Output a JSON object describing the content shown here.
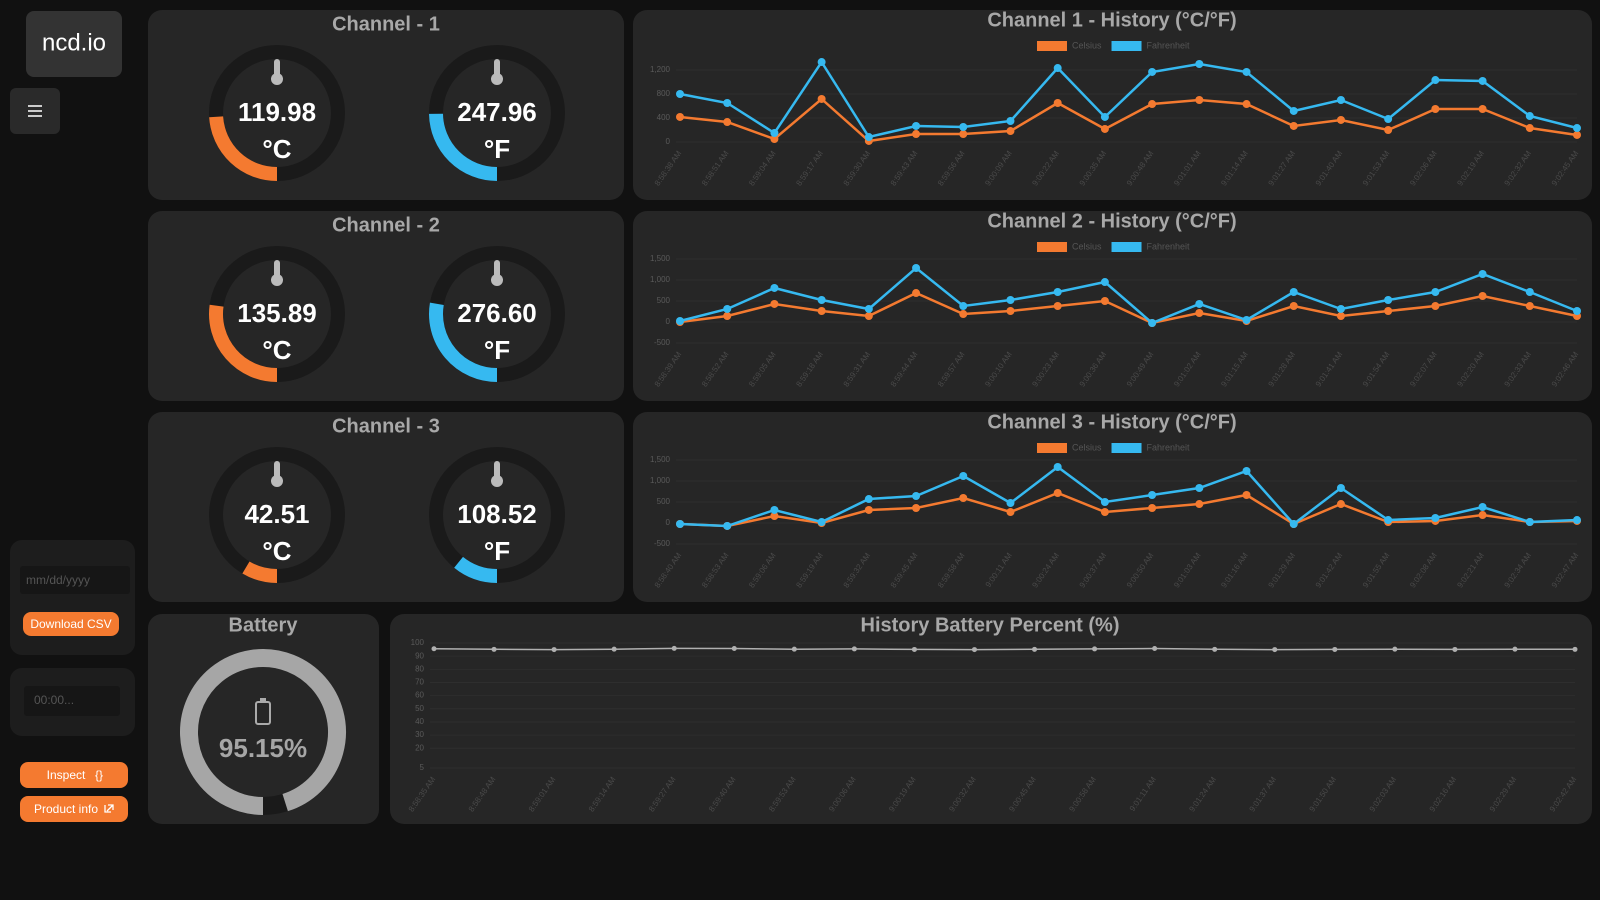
{
  "sidebar": {
    "logo": "ncd.io",
    "date_placeholder": "mm/dd/yyyy",
    "download_button": "Download CSV",
    "time_select": "00:00...",
    "inspect_button": "Inspect",
    "product_info_button": "Product info"
  },
  "channels": [
    {
      "title": "Channel - 1",
      "gauges": [
        {
          "value": 119.98,
          "value_label": "119.98",
          "unit": "°C",
          "max": 500,
          "color": "#f47a30"
        },
        {
          "value": 247.96,
          "value_label": "247.96",
          "unit": "°F",
          "max": 1000,
          "color": "#36b9f0"
        }
      ]
    },
    {
      "title": "Channel - 2",
      "gauges": [
        {
          "value": 135.89,
          "value_label": "135.89",
          "unit": "°C",
          "max": 500,
          "color": "#f47a30"
        },
        {
          "value": 276.6,
          "value_label": "276.60",
          "unit": "°F",
          "max": 1000,
          "color": "#36b9f0"
        }
      ]
    },
    {
      "title": "Channel - 3",
      "gauges": [
        {
          "value": 42.51,
          "value_label": "42.51",
          "unit": "°C",
          "max": 500,
          "color": "#f47a30"
        },
        {
          "value": 108.52,
          "value_label": "108.52",
          "unit": "°F",
          "max": 1000,
          "color": "#36b9f0"
        }
      ]
    }
  ],
  "battery": {
    "title": "Battery",
    "value": 95.15,
    "value_label": "95.15%",
    "max": 100,
    "color": "#a6a6a6"
  },
  "chart_data": [
    {
      "type": "line",
      "title": "Channel 1 - History (°C/°F)",
      "categories": [
        "8:58:38 AM",
        "8:58:51 AM",
        "8:59:04 AM",
        "8:59:17 AM",
        "8:59:30 AM",
        "8:59:43 AM",
        "8:59:56 AM",
        "9:00:09 AM",
        "9:00:22 AM",
        "9:00:35 AM",
        "9:00:48 AM",
        "9:01:01 AM",
        "9:01:14 AM",
        "9:01:27 AM",
        "9:01:40 AM",
        "9:01:53 AM",
        "9:02:06 AM",
        "9:02:19 AM",
        "9:02:32 AM",
        "9:02:45 AM"
      ],
      "series": [
        {
          "name": "Celsius",
          "color": "#f47a30",
          "values": [
            417,
            333,
            50,
            717,
            17,
            133,
            133,
            183,
            650,
            217,
            633,
            700,
            633,
            267,
            367,
            200,
            550,
            550,
            233,
            117
          ]
        },
        {
          "name": "Fahrenheit",
          "color": "#36b9f0",
          "values": [
            800,
            650,
            150,
            1333,
            83,
            267,
            250,
            350,
            1233,
            417,
            1167,
            1300,
            1167,
            517,
            700,
            383,
            1033,
            1017,
            433,
            233
          ]
        }
      ],
      "ylim": [
        0,
        1400
      ],
      "yticks": [
        0,
        400,
        800,
        {
          "value": 1200,
          "label": "1,200"
        }
      ],
      "legend": "top"
    },
    {
      "type": "line",
      "title": "Channel 2 - History (°C/°F)",
      "categories": [
        "8:58:39 AM",
        "8:58:52 AM",
        "8:59:05 AM",
        "8:59:18 AM",
        "8:59:31 AM",
        "8:59:44 AM",
        "8:59:57 AM",
        "9:00:10 AM",
        "9:00:23 AM",
        "9:00:36 AM",
        "9:00:49 AM",
        "9:01:02 AM",
        "9:01:15 AM",
        "9:01:28 AM",
        "9:01:41 AM",
        "9:01:54 AM",
        "9:02:07 AM",
        "9:02:20 AM",
        "9:02:33 AM",
        "9:02:46 AM"
      ],
      "series": [
        {
          "name": "Celsius",
          "color": "#f47a30",
          "values": [
            0,
            143,
            429,
            262,
            143,
            690,
            190,
            262,
            381,
            500,
            -24,
            214,
            24,
            381,
            143,
            262,
            381,
            619,
            381,
            143
          ]
        },
        {
          "name": "Fahrenheit",
          "color": "#36b9f0",
          "values": [
            24,
            310,
            810,
            524,
            310,
            1286,
            381,
            524,
            714,
            952,
            -24,
            429,
            48,
            714,
            310,
            524,
            714,
            1143,
            714,
            262
          ]
        }
      ],
      "ylim": [
        -500,
        1500
      ],
      "yticks": [
        -500,
        0,
        500,
        {
          "value": 1000,
          "label": "1,000"
        },
        {
          "value": 1500,
          "label": "1,500"
        }
      ],
      "legend": "top"
    },
    {
      "type": "line",
      "title": "Channel 3 - History (°C/°F)",
      "categories": [
        "8:58:40 AM",
        "8:58:53 AM",
        "8:59:06 AM",
        "8:59:19 AM",
        "8:59:32 AM",
        "8:59:45 AM",
        "8:59:58 AM",
        "9:00:11 AM",
        "9:00:24 AM",
        "9:00:37 AM",
        "9:00:50 AM",
        "9:01:03 AM",
        "9:01:16 AM",
        "9:01:29 AM",
        "9:01:42 AM",
        "9:01:55 AM",
        "9:02:08 AM",
        "9:02:21 AM",
        "9:02:34 AM",
        "9:02:47 AM"
      ],
      "series": [
        {
          "name": "Celsius",
          "color": "#f47a30",
          "values": [
            -24,
            -71,
            167,
            0,
            310,
            357,
            595,
            262,
            714,
            262,
            357,
            452,
            667,
            -24,
            452,
            24,
            48,
            190,
            24,
            48
          ]
        },
        {
          "name": "Fahrenheit",
          "color": "#36b9f0",
          "values": [
            -24,
            -71,
            310,
            24,
            571,
            643,
            1119,
            476,
            1333,
            500,
            667,
            833,
            1238,
            -24,
            833,
            71,
            119,
            381,
            24,
            71
          ]
        }
      ],
      "ylim": [
        -500,
        1500
      ],
      "yticks": [
        -500,
        0,
        500,
        {
          "value": 1000,
          "label": "1,000"
        },
        {
          "value": 1500,
          "label": "1,500"
        }
      ],
      "legend": "top"
    },
    {
      "type": "line",
      "title": "History Battery Percent (%)",
      "categories": [
        "8:58:35 AM",
        "8:58:48 AM",
        "8:59:01 AM",
        "8:59:14 AM",
        "8:59:27 AM",
        "8:59:40 AM",
        "8:59:53 AM",
        "9:00:06 AM",
        "9:00:19 AM",
        "9:00:32 AM",
        "9:00:45 AM",
        "9:00:58 AM",
        "9:01:11 AM",
        "9:01:24 AM",
        "9:01:37 AM",
        "9:01:50 AM",
        "9:02:03 AM",
        "9:02:16 AM",
        "9:02:29 AM",
        "9:02:42 AM"
      ],
      "values": [
        95.6,
        95.2,
        95.0,
        95.3,
        95.9,
        95.8,
        95.3,
        95.5,
        95.1,
        95.0,
        95.2,
        95.5,
        95.8,
        95.2,
        95.0,
        95.1,
        95.3,
        95.1,
        95.3,
        95.2
      ],
      "color": "#b0b0b0",
      "ylim": [
        5,
        100
      ],
      "yticks": [
        5,
        20,
        30,
        40,
        50,
        60,
        70,
        80,
        90,
        100
      ]
    }
  ]
}
